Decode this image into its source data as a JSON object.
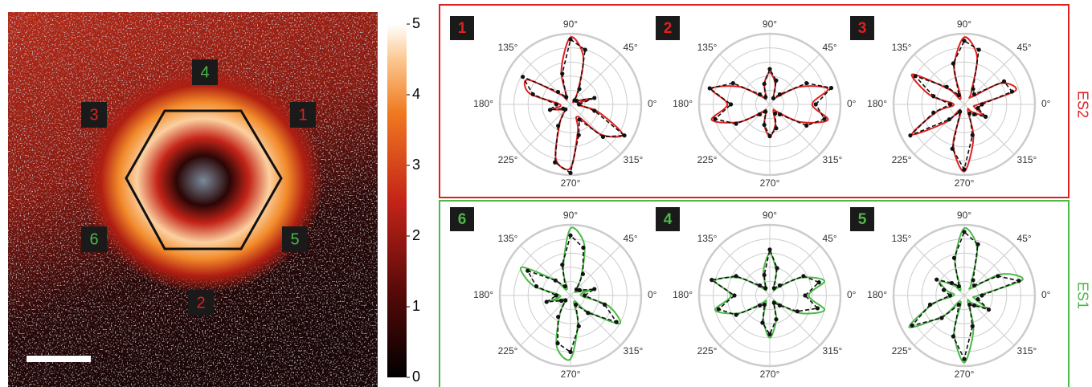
{
  "chart_data": [
    {
      "type": "heatmap",
      "clim": [
        0,
        5
      ],
      "cticks": [
        0,
        1,
        2,
        3,
        4,
        5
      ],
      "sites": [
        {
          "label": "1",
          "color": "#e02020"
        },
        {
          "label": "2",
          "color": "#e02020"
        },
        {
          "label": "3",
          "color": "#e02020"
        },
        {
          "label": "4",
          "color": "#4cb848"
        },
        {
          "label": "5",
          "color": "#4cb848"
        },
        {
          "label": "6",
          "color": "#4cb848"
        }
      ]
    },
    {
      "type": "polar",
      "group": "ES2",
      "panel": "1",
      "panel_color": "#e02020",
      "rlim": [
        0,
        1
      ],
      "rticks": [
        0.2,
        0.4,
        0.6,
        0.8,
        1
      ],
      "thetaticks": [
        {
          "value": 0,
          "label": "0°"
        },
        {
          "value": 45,
          "label": "45°"
        },
        {
          "value": 90,
          "label": "90°"
        },
        {
          "value": 135,
          "label": "135°"
        },
        {
          "value": 180,
          "label": "180°"
        },
        {
          "value": 225,
          "label": "225°"
        },
        {
          "value": 270,
          "label": "270°"
        },
        {
          "value": 315,
          "label": "315°"
        }
      ],
      "theta": [
        0,
        15,
        30,
        45,
        60,
        75,
        90,
        105,
        120,
        135,
        150,
        165,
        180,
        195,
        210,
        225,
        240,
        255,
        270,
        285,
        300,
        315,
        330,
        345
      ],
      "series": [
        {
          "color": "#e02020",
          "values": [
            0.1,
            0.3,
            0.1,
            0.05,
            0.2,
            0.7,
            0.95,
            0.5,
            0.1,
            0.2,
            0.7,
            0.6,
            0.15,
            0.25,
            0.15,
            0.1,
            0.3,
            0.8,
            0.9,
            0.4,
            0.2,
            0.6,
            0.85,
            0.4
          ]
        },
        {
          "color": "#111111",
          "dash": true,
          "markers": true,
          "values": [
            0.12,
            0.35,
            0.1,
            0.08,
            0.25,
            0.8,
            0.92,
            0.45,
            0.12,
            0.25,
            0.78,
            0.55,
            0.2,
            0.3,
            0.12,
            0.1,
            0.35,
            0.85,
            0.97,
            0.45,
            0.25,
            0.65,
            0.88,
            0.35
          ]
        }
      ]
    },
    {
      "type": "polar",
      "group": "ES2",
      "panel": "2",
      "panel_color": "#e02020",
      "rlim": [
        0,
        1
      ],
      "rticks": [
        0.2,
        0.4,
        0.6,
        0.8,
        1
      ],
      "thetaticks": [
        {
          "value": 0,
          "label": "0°"
        },
        {
          "value": 45,
          "label": "45°"
        },
        {
          "value": 90,
          "label": "90°"
        },
        {
          "value": 135,
          "label": "135°"
        },
        {
          "value": 180,
          "label": "180°"
        },
        {
          "value": 225,
          "label": "225°"
        },
        {
          "value": 270,
          "label": "270°"
        },
        {
          "value": 315,
          "label": "315°"
        }
      ],
      "theta": [
        0,
        15,
        30,
        45,
        60,
        75,
        90,
        105,
        120,
        135,
        150,
        165,
        180,
        195,
        210,
        225,
        240,
        255,
        270,
        285,
        300,
        315,
        330,
        345
      ],
      "series": [
        {
          "color": "#e02020",
          "values": [
            0.6,
            0.85,
            0.5,
            0.15,
            0.1,
            0.3,
            0.45,
            0.3,
            0.1,
            0.15,
            0.5,
            0.85,
            0.6,
            0.85,
            0.5,
            0.15,
            0.1,
            0.3,
            0.45,
            0.3,
            0.1,
            0.15,
            0.5,
            0.85
          ]
        },
        {
          "color": "#111111",
          "dash": true,
          "markers": true,
          "values": [
            0.65,
            0.9,
            0.6,
            0.2,
            0.1,
            0.35,
            0.5,
            0.3,
            0.12,
            0.2,
            0.6,
            0.88,
            0.55,
            0.8,
            0.55,
            0.2,
            0.12,
            0.3,
            0.45,
            0.35,
            0.15,
            0.2,
            0.6,
            0.8
          ]
        }
      ]
    },
    {
      "type": "polar",
      "group": "ES2",
      "panel": "3",
      "panel_color": "#e02020",
      "rlim": [
        0,
        1
      ],
      "rticks": [
        0.2,
        0.4,
        0.6,
        0.8,
        1
      ],
      "thetaticks": [
        {
          "value": 0,
          "label": "0°"
        },
        {
          "value": 45,
          "label": "45°"
        },
        {
          "value": 90,
          "label": "90°"
        },
        {
          "value": 135,
          "label": "135°"
        },
        {
          "value": 180,
          "label": "180°"
        },
        {
          "value": 225,
          "label": "225°"
        },
        {
          "value": 270,
          "label": "270°"
        },
        {
          "value": 315,
          "label": "315°"
        }
      ],
      "theta": [
        0,
        15,
        30,
        45,
        60,
        75,
        90,
        105,
        120,
        135,
        150,
        165,
        180,
        195,
        210,
        225,
        240,
        255,
        270,
        285,
        300,
        315,
        330,
        345
      ],
      "series": [
        {
          "color": "#e02020",
          "values": [
            0.2,
            0.75,
            0.6,
            0.15,
            0.2,
            0.7,
            0.95,
            0.55,
            0.1,
            0.3,
            0.85,
            0.5,
            0.15,
            0.4,
            0.85,
            0.35,
            0.1,
            0.6,
            0.95,
            0.5,
            0.1,
            0.15,
            0.3,
            0.15
          ]
        },
        {
          "color": "#111111",
          "dash": true,
          "markers": true,
          "values": [
            0.25,
            0.7,
            0.65,
            0.2,
            0.25,
            0.8,
            0.9,
            0.6,
            0.15,
            0.35,
            0.8,
            0.45,
            0.2,
            0.45,
            0.88,
            0.3,
            0.12,
            0.65,
            0.92,
            0.45,
            0.15,
            0.2,
            0.35,
            0.2
          ]
        }
      ]
    },
    {
      "type": "polar",
      "group": "ES1",
      "panel": "6",
      "panel_color": "#4cb848",
      "rlim": [
        0,
        1
      ],
      "rticks": [
        0.2,
        0.4,
        0.6,
        0.8,
        1
      ],
      "thetaticks": [
        {
          "value": 0,
          "label": "0°"
        },
        {
          "value": 45,
          "label": "45°"
        },
        {
          "value": 90,
          "label": "90°"
        },
        {
          "value": 135,
          "label": "135°"
        },
        {
          "value": 180,
          "label": "180°"
        },
        {
          "value": 225,
          "label": "225°"
        },
        {
          "value": 270,
          "label": "270°"
        },
        {
          "value": 315,
          "label": "315°"
        }
      ],
      "theta": [
        0,
        15,
        30,
        45,
        60,
        75,
        90,
        105,
        120,
        135,
        150,
        165,
        180,
        195,
        210,
        225,
        240,
        255,
        270,
        285,
        300,
        315,
        330,
        345
      ],
      "series": [
        {
          "color": "#4cb848",
          "values": [
            0.15,
            0.3,
            0.1,
            0.1,
            0.3,
            0.75,
            0.95,
            0.4,
            0.1,
            0.3,
            0.8,
            0.55,
            0.15,
            0.3,
            0.1,
            0.1,
            0.3,
            0.75,
            0.9,
            0.4,
            0.1,
            0.3,
            0.8,
            0.55
          ]
        },
        {
          "color": "#111111",
          "dash": true,
          "markers": true,
          "values": [
            0.2,
            0.35,
            0.15,
            0.12,
            0.35,
            0.7,
            0.85,
            0.45,
            0.15,
            0.3,
            0.7,
            0.5,
            0.2,
            0.35,
            0.15,
            0.1,
            0.35,
            0.7,
            0.8,
            0.45,
            0.15,
            0.35,
            0.75,
            0.5
          ]
        }
      ]
    },
    {
      "type": "polar",
      "group": "ES1",
      "panel": "4",
      "panel_color": "#4cb848",
      "rlim": [
        0,
        1
      ],
      "rticks": [
        0.2,
        0.4,
        0.6,
        0.8,
        1
      ],
      "thetaticks": [
        {
          "value": 0,
          "label": "0°"
        },
        {
          "value": 45,
          "label": "45°"
        },
        {
          "value": 90,
          "label": "90°"
        },
        {
          "value": 135,
          "label": "135°"
        },
        {
          "value": 180,
          "label": "180°"
        },
        {
          "value": 225,
          "label": "225°"
        },
        {
          "value": 270,
          "label": "270°"
        },
        {
          "value": 315,
          "label": "315°"
        }
      ],
      "theta": [
        0,
        15,
        30,
        45,
        60,
        75,
        90,
        105,
        120,
        135,
        150,
        165,
        180,
        195,
        210,
        225,
        240,
        255,
        270,
        285,
        300,
        315,
        330,
        345
      ],
      "series": [
        {
          "color": "#4cb848",
          "values": [
            0.55,
            0.8,
            0.5,
            0.15,
            0.1,
            0.35,
            0.6,
            0.35,
            0.1,
            0.15,
            0.5,
            0.8,
            0.55,
            0.8,
            0.5,
            0.15,
            0.1,
            0.35,
            0.6,
            0.35,
            0.1,
            0.15,
            0.5,
            0.8
          ]
        },
        {
          "color": "#111111",
          "dash": true,
          "markers": true,
          "values": [
            0.5,
            0.72,
            0.55,
            0.2,
            0.12,
            0.4,
            0.65,
            0.3,
            0.12,
            0.2,
            0.55,
            0.85,
            0.5,
            0.75,
            0.55,
            0.2,
            0.15,
            0.4,
            0.55,
            0.35,
            0.12,
            0.2,
            0.45,
            0.7
          ]
        }
      ]
    },
    {
      "type": "polar",
      "group": "ES1",
      "panel": "5",
      "panel_color": "#4cb848",
      "rlim": [
        0,
        1
      ],
      "rticks": [
        0.2,
        0.4,
        0.6,
        0.8,
        1
      ],
      "thetaticks": [
        {
          "value": 0,
          "label": "0°"
        },
        {
          "value": 45,
          "label": "45°"
        },
        {
          "value": 90,
          "label": "90°"
        },
        {
          "value": 135,
          "label": "135°"
        },
        {
          "value": 180,
          "label": "180°"
        },
        {
          "value": 225,
          "label": "225°"
        },
        {
          "value": 270,
          "label": "270°"
        },
        {
          "value": 315,
          "label": "315°"
        }
      ],
      "theta": [
        0,
        15,
        30,
        45,
        60,
        75,
        90,
        105,
        120,
        135,
        150,
        165,
        180,
        195,
        210,
        225,
        240,
        255,
        270,
        285,
        300,
        315,
        330,
        345
      ],
      "series": [
        {
          "color": "#4cb848",
          "values": [
            0.2,
            0.85,
            0.6,
            0.15,
            0.2,
            0.7,
            0.95,
            0.5,
            0.1,
            0.2,
            0.4,
            0.25,
            0.15,
            0.45,
            0.9,
            0.4,
            0.1,
            0.55,
            0.95,
            0.5,
            0.1,
            0.15,
            0.35,
            0.15
          ]
        },
        {
          "color": "#111111",
          "dash": true,
          "markers": true,
          "values": [
            0.25,
            0.8,
            0.55,
            0.2,
            0.25,
            0.75,
            0.9,
            0.55,
            0.15,
            0.25,
            0.45,
            0.3,
            0.2,
            0.5,
            0.85,
            0.45,
            0.15,
            0.6,
            0.9,
            0.45,
            0.15,
            0.2,
            0.4,
            0.2
          ]
        }
      ]
    }
  ]
}
